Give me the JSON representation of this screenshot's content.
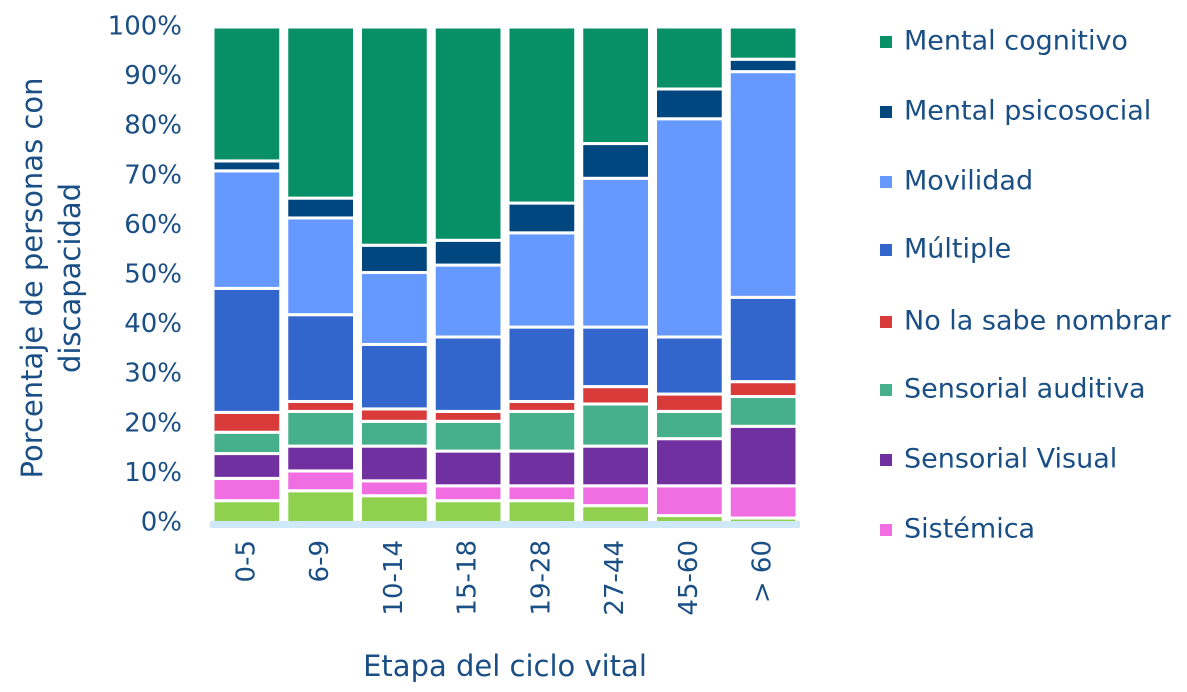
{
  "chart_data": {
    "type": "stacked_bar",
    "xlabel": "Etapa del ciclo vital",
    "ylabel": [
      "Porcentaje de personas con",
      "discapacidad"
    ],
    "categories": [
      "0-5",
      "6-9",
      "10-14",
      "15-18",
      "19-28",
      "27-44",
      "45-60",
      "> 60"
    ],
    "ylim": [
      0,
      100
    ],
    "yticks": [
      {
        "value": 0,
        "label": "0%"
      },
      {
        "value": 10,
        "label": "10%"
      },
      {
        "value": 20,
        "label": "20%"
      },
      {
        "value": 30,
        "label": "30%"
      },
      {
        "value": 40,
        "label": "40%"
      },
      {
        "value": 50,
        "label": "50%"
      },
      {
        "value": 60,
        "label": "60%"
      },
      {
        "value": 70,
        "label": "70%"
      },
      {
        "value": 80,
        "label": "80%"
      },
      {
        "value": 90,
        "label": "90%"
      },
      {
        "value": 100,
        "label": "100%"
      }
    ],
    "legend": "right",
    "series": [
      {
        "color": "#8fd14f",
        "values": [
          4.5,
          6.5,
          5.5,
          4.5,
          4.5,
          3.5,
          1.5,
          1
        ]
      },
      {
        "name": "Sistémica",
        "color": "#f06ee2",
        "values": [
          4.5,
          4,
          3,
          3,
          3,
          4,
          6,
          6.5
        ]
      },
      {
        "name": "Sensorial Visual",
        "color": "#7030a0",
        "values": [
          5,
          5,
          7,
          7,
          7,
          8,
          9.5,
          12
        ]
      },
      {
        "name": "Sensorial auditiva",
        "color": "#46af8c",
        "values": [
          4.3,
          7,
          5,
          6,
          8,
          8.5,
          5.5,
          6
        ]
      },
      {
        "name": "No la sabe nombrar",
        "color": "#d93b3b",
        "values": [
          4,
          2,
          2.5,
          2,
          2,
          3.5,
          3.5,
          3
        ]
      },
      {
        "name": "Múltiple",
        "color": "#3366cc",
        "values": [
          25,
          17.5,
          13,
          15,
          15,
          12,
          11.5,
          17
        ]
      },
      {
        "name": "Movilidad",
        "color": "#6699ff",
        "values": [
          23.7,
          19.5,
          14.5,
          14.5,
          19,
          30,
          44,
          45.5
        ]
      },
      {
        "name": "Mental psicosocial",
        "color": "#00467f",
        "values": [
          2,
          4,
          5.5,
          5,
          6,
          7,
          6,
          2.5
        ]
      },
      {
        "name": "Mental cognitivo",
        "color": "#078f66",
        "values": [
          27,
          34.5,
          44,
          43,
          35.5,
          23.5,
          12.5,
          6.5
        ]
      }
    ]
  }
}
